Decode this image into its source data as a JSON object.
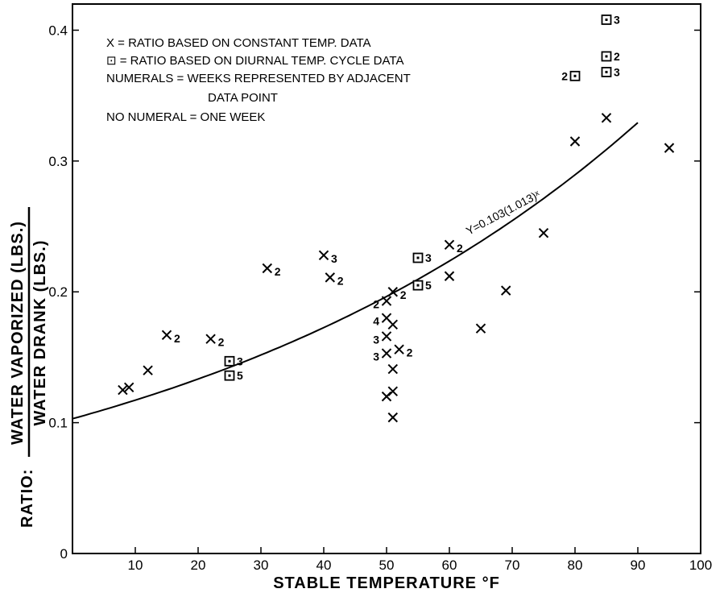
{
  "chart_data": {
    "type": "scatter",
    "title": "",
    "xlabel": "STABLE  TEMPERATURE  °F",
    "ylabel_prefix": "RATIO:",
    "ylabel_numerator": "WATER  VAPORIZED (LBS.)",
    "ylabel_denominator": "WATER  DRANK (LBS.)",
    "xlim": [
      0,
      100
    ],
    "ylim": [
      0,
      0.42
    ],
    "x_ticks": [
      "10",
      "20",
      "30",
      "40",
      "50",
      "60",
      "70",
      "80",
      "90",
      "100"
    ],
    "y_ticks": [
      "0",
      "0.1",
      "0.2",
      "0.3",
      "0.4"
    ],
    "grid": false,
    "legend": {
      "placement": "top-left",
      "lines": [
        "X = RATIO BASED ON CONSTANT TEMP. DATA",
        "⊡ = RATIO BASED ON DIURNAL TEMP. CYCLE DATA",
        "NUMERALS = WEEKS REPRESENTED BY ADJACENT",
        "DATA POINT",
        "NO NUMERAL = ONE WEEK"
      ]
    },
    "curve": {
      "label": "Y=0.103(1.013)ˣ",
      "a": 0.103,
      "b": 1.013,
      "x_range": [
        0,
        90
      ]
    },
    "series": [
      {
        "name": "constant temperature",
        "marker": "X",
        "points": [
          {
            "x": 8,
            "y": 0.125,
            "n": ""
          },
          {
            "x": 9,
            "y": 0.127,
            "n": ""
          },
          {
            "x": 12,
            "y": 0.14,
            "n": ""
          },
          {
            "x": 15,
            "y": 0.167,
            "n": "2"
          },
          {
            "x": 22,
            "y": 0.164,
            "n": "2"
          },
          {
            "x": 31,
            "y": 0.218,
            "n": "2"
          },
          {
            "x": 40,
            "y": 0.228,
            "n": "3"
          },
          {
            "x": 41,
            "y": 0.211,
            "n": "2"
          },
          {
            "x": 50,
            "y": 0.193,
            "n": "2"
          },
          {
            "x": 50,
            "y": 0.18,
            "n": "4"
          },
          {
            "x": 50,
            "y": 0.166,
            "n": "3"
          },
          {
            "x": 50,
            "y": 0.153,
            "n": "3"
          },
          {
            "x": 50,
            "y": 0.12,
            "n": ""
          },
          {
            "x": 51,
            "y": 0.175,
            "n": ""
          },
          {
            "x": 51,
            "y": 0.141,
            "n": ""
          },
          {
            "x": 51,
            "y": 0.124,
            "n": ""
          },
          {
            "x": 51,
            "y": 0.104,
            "n": ""
          },
          {
            "x": 51,
            "y": 0.2,
            "n": "2"
          },
          {
            "x": 52,
            "y": 0.156,
            "n": "2"
          },
          {
            "x": 60,
            "y": 0.236,
            "n": "2"
          },
          {
            "x": 60,
            "y": 0.212,
            "n": ""
          },
          {
            "x": 65,
            "y": 0.172,
            "n": ""
          },
          {
            "x": 69,
            "y": 0.201,
            "n": ""
          },
          {
            "x": 75,
            "y": 0.245,
            "n": ""
          },
          {
            "x": 80,
            "y": 0.315,
            "n": ""
          },
          {
            "x": 85,
            "y": 0.333,
            "n": ""
          },
          {
            "x": 95,
            "y": 0.31,
            "n": ""
          }
        ]
      },
      {
        "name": "diurnal temperature cycle",
        "marker": "box",
        "points": [
          {
            "x": 25,
            "y": 0.147,
            "n": "3"
          },
          {
            "x": 25,
            "y": 0.136,
            "n": "5"
          },
          {
            "x": 55,
            "y": 0.226,
            "n": "3"
          },
          {
            "x": 55,
            "y": 0.205,
            "n": "5"
          },
          {
            "x": 80,
            "y": 0.365,
            "n": "2",
            "label_side": "left"
          },
          {
            "x": 85,
            "y": 0.408,
            "n": "3"
          },
          {
            "x": 85,
            "y": 0.38,
            "n": "2"
          },
          {
            "x": 85,
            "y": 0.368,
            "n": "3"
          }
        ]
      }
    ]
  }
}
